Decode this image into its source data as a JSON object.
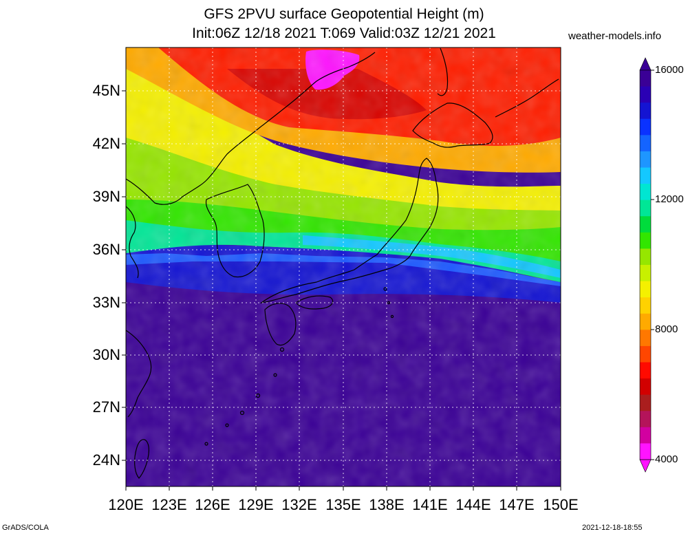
{
  "title_line1": "GFS 2PVU surface Geopotential Height (m)",
  "title_line2": "Init:06Z 12/18 2021 T:069 Valid:03Z 12/21 2021",
  "site": "weather-models.info",
  "credit": "GrADS/COLA",
  "timestamp": "2021-12-18-18:55",
  "lat_labels": [
    "45N",
    "42N",
    "39N",
    "36N",
    "33N",
    "30N",
    "27N",
    "24N"
  ],
  "lon_labels": [
    "120E",
    "123E",
    "126E",
    "129E",
    "132E",
    "135E",
    "138E",
    "141E",
    "144E",
    "147E",
    "150E"
  ],
  "colorbar_labels": [
    "16000",
    "12000",
    "8000",
    "4000"
  ],
  "colorbar_colors": [
    "#3a0096",
    "#2a00b4",
    "#1414d2",
    "#0a32ff",
    "#1464ff",
    "#1e96ff",
    "#14c8ff",
    "#00e6d2",
    "#00e696",
    "#00dc3c",
    "#32e600",
    "#96e600",
    "#c8f000",
    "#f5f000",
    "#ffd200",
    "#ffaa00",
    "#ff7800",
    "#ff4600",
    "#ff0a00",
    "#d20000",
    "#aa1e1e",
    "#b4145a",
    "#d200a0",
    "#ff14ff"
  ],
  "map": {
    "projection": "lat-lon",
    "lon_range": [
      120,
      150
    ],
    "lat_range": [
      22.5,
      47.5
    ],
    "grid": "dotted",
    "field_bands": [
      {
        "label": "lowest (south of ~35N)",
        "color": "#3a0096"
      },
      {
        "label": "jet transition",
        "color": "#1414d2"
      },
      {
        "label": "green",
        "color": "#32e600"
      },
      {
        "label": "yellow",
        "color": "#f5f000"
      },
      {
        "label": "orange",
        "color": "#ffaa00"
      },
      {
        "label": "red",
        "color": "#ff1e00"
      },
      {
        "label": "magenta minimum",
        "color": "#ff14ff"
      }
    ]
  }
}
